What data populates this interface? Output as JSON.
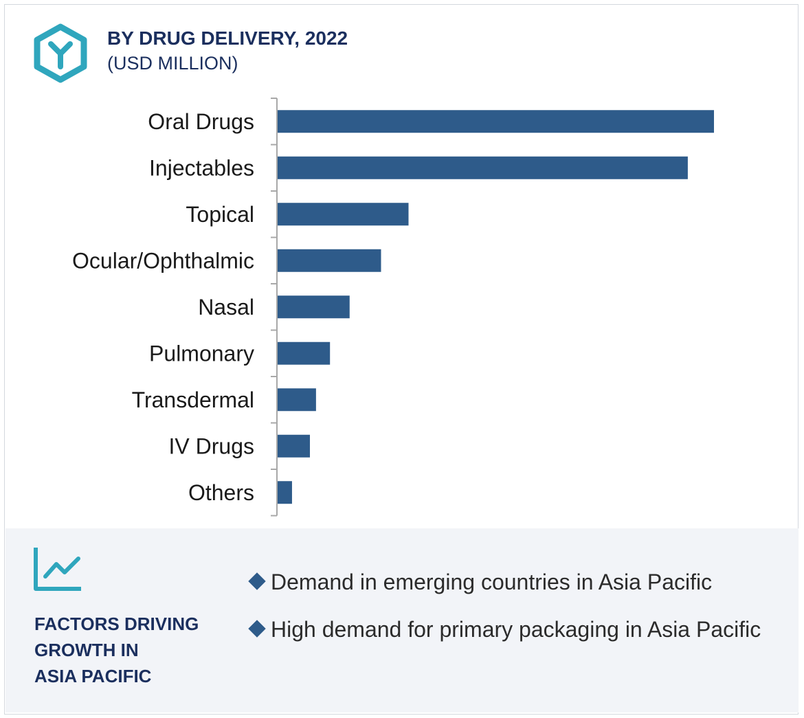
{
  "header": {
    "title": "BY DRUG DELIVERY, 2022",
    "subtitle": "(USD MILLION)",
    "logo_icon": "hexagon-y-logo-icon"
  },
  "colors": {
    "bar": "#2e5b8a",
    "axis": "#a8a8a8",
    "title": "#1b2f5e",
    "logo": "#2fa6bd",
    "panel_background": "#f2f4f8"
  },
  "chart_data": {
    "type": "bar",
    "orientation": "horizontal",
    "title": "BY DRUG DELIVERY, 2022",
    "subtitle": "(USD MILLION)",
    "categories": [
      "Oral Drugs",
      "Injectables",
      "Topical",
      "Ocular/Ophthalmic",
      "Nasal",
      "Pulmonary",
      "Transdermal",
      "IV Drugs",
      "Others"
    ],
    "values": [
      100,
      94,
      30,
      23.7,
      16.5,
      12,
      8.8,
      7.4,
      3.3
    ],
    "value_scale": "relative (no axis values printed)",
    "xlim": [
      0,
      100
    ],
    "xlabel": "",
    "ylabel": "",
    "grid": false,
    "legend": "none"
  },
  "factors": {
    "icon": "line-chart-icon",
    "heading_lines": [
      "FACTORS DRIVING",
      "GROWTH IN",
      "ASIA PACIFIC"
    ],
    "items": [
      {
        "text": "Demand in emerging countries in Asia Pacific"
      },
      {
        "text": "High demand for primary packaging in Asia Pacific"
      }
    ]
  }
}
